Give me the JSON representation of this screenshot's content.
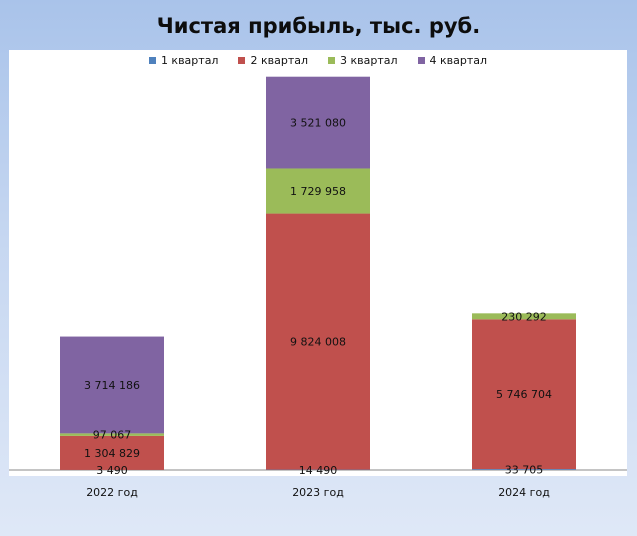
{
  "title": "Чистая прибыль, тыс. руб.",
  "colors": {
    "background_top": "#a9c3ea",
    "background_bottom": "#dfe8f7",
    "plot_area": "#ffffff"
  },
  "chart_data": {
    "type": "bar",
    "stacked": true,
    "title": "Чистая прибыль, тыс. руб.",
    "xlabel": "",
    "ylabel": "",
    "categories": [
      "2022 год",
      "2023 год",
      "2024 год"
    ],
    "series": [
      {
        "name": "1 квартал",
        "color": "#4f81bd",
        "values": [
          3490,
          14490,
          33705
        ],
        "labels": [
          "3 490",
          "14 490",
          "33 705"
        ]
      },
      {
        "name": "2 квартал",
        "color": "#c0504d",
        "values": [
          1304829,
          9824008,
          5746704
        ],
        "labels": [
          "1 304 829",
          "9 824 008",
          "5 746 704"
        ]
      },
      {
        "name": "3 квартал",
        "color": "#9bbb59",
        "values": [
          97067,
          1729958,
          230292
        ],
        "labels": [
          "97 067",
          "1 729 958",
          "230 292"
        ]
      },
      {
        "name": "4 квартал",
        "color": "#8064a2",
        "values": [
          3714186,
          3521080,
          0
        ],
        "labels": [
          "3 714 186",
          "3 521 080",
          ""
        ]
      }
    ],
    "ylim": [
      0,
      15500000
    ],
    "grid": false,
    "legend_position": "top"
  }
}
